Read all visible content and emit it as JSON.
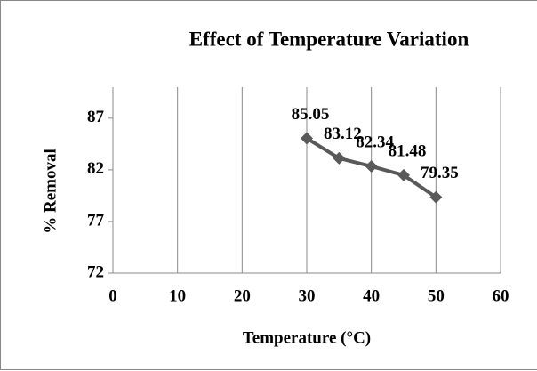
{
  "chart_data": {
    "type": "line",
    "title": "Effect of Temperature Variation",
    "xlabel": "Temperature (°C)",
    "ylabel": "% Removal",
    "x": [
      30,
      35,
      40,
      45,
      50
    ],
    "series": [
      {
        "name": "% Removal",
        "color": "#595959",
        "values": [
          85.05,
          83.12,
          82.34,
          81.48,
          79.35
        ]
      }
    ],
    "xlim": [
      0,
      60
    ],
    "xticks": [
      0,
      10,
      20,
      30,
      40,
      50,
      60
    ],
    "ylim": [
      72,
      90
    ],
    "yticks": [
      72,
      77,
      82,
      87
    ],
    "grid": "x"
  }
}
